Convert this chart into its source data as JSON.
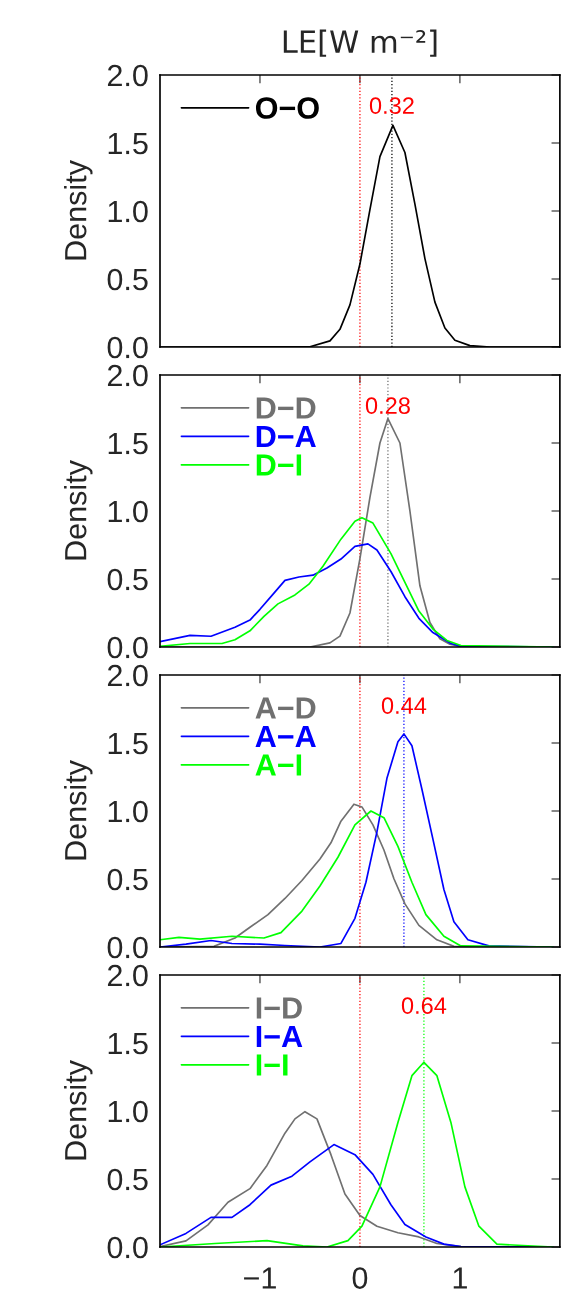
{
  "chart_data": [
    {
      "type": "line",
      "title": "LE[W m⁻²]",
      "ylabel": "Density",
      "xlim": [
        -2,
        2
      ],
      "ylim": [
        0,
        2
      ],
      "xticks": [
        -1,
        0,
        1
      ],
      "yticks": [
        {
          "value": 0,
          "label": "0.0"
        },
        {
          "value": 0.5,
          "label": "0.5"
        },
        {
          "value": 1,
          "label": "1.0"
        },
        {
          "value": 1.5,
          "label": "1.5"
        },
        {
          "value": 2,
          "label": "2.0"
        }
      ],
      "tick_labels": "y",
      "grid": false,
      "legend": "top left",
      "series": [
        {
          "name": "O−O",
          "color": "#000000",
          "x": [
            -2,
            -0.5,
            -0.3,
            -0.2,
            -0.1,
            0,
            0.1,
            0.2,
            0.33,
            0.45,
            0.55,
            0.65,
            0.75,
            0.85,
            0.95,
            1.1,
            1.3,
            2
          ],
          "values": [
            0,
            0.002,
            0.045,
            0.13,
            0.31,
            0.61,
            1.01,
            1.4,
            1.63,
            1.43,
            1.05,
            0.65,
            0.33,
            0.14,
            0.05,
            0.01,
            0,
            0
          ]
        }
      ],
      "ref_lines": [
        {
          "axis": "x",
          "value": 0,
          "color": "#ff0000",
          "line_style": "dotted"
        },
        {
          "axis": "x",
          "value": 0.32,
          "label": "0.32",
          "color": "#000000",
          "line_style": "dotted"
        }
      ]
    },
    {
      "type": "line",
      "ylabel": "Density",
      "xlim": [
        -2,
        2
      ],
      "ylim": [
        0,
        2
      ],
      "xticks": [
        -1,
        0,
        1
      ],
      "yticks": [
        {
          "value": 0,
          "label": "0.0"
        },
        {
          "value": 0.5,
          "label": "0.5"
        },
        {
          "value": 1,
          "label": "1.0"
        },
        {
          "value": 1.5,
          "label": "1.5"
        },
        {
          "value": 2,
          "label": "2.0"
        }
      ],
      "tick_labels": "y",
      "grid": false,
      "legend": "top left",
      "series": [
        {
          "name": "D−D",
          "color": "#707070",
          "x": [
            -2,
            -0.5,
            -0.3,
            -0.2,
            -0.1,
            0,
            0.1,
            0.2,
            0.28,
            0.4,
            0.5,
            0.6,
            0.7,
            0.8,
            0.9,
            1.0,
            1.2,
            2
          ],
          "values": [
            0,
            0,
            0.03,
            0.08,
            0.25,
            0.65,
            1.1,
            1.5,
            1.68,
            1.5,
            1.0,
            0.45,
            0.18,
            0.06,
            0.02,
            0.005,
            0,
            0
          ]
        },
        {
          "name": "D−A",
          "color": "#0000ff",
          "x": [
            -2,
            -1.7,
            -1.49,
            -1.25,
            -1.1,
            -1.0,
            -0.86,
            -0.75,
            -0.61,
            -0.47,
            -0.33,
            -0.19,
            -0.05,
            0.08,
            0.17,
            0.31,
            0.45,
            0.59,
            0.73,
            0.91,
            1.01,
            1.93
          ],
          "values": [
            0.04,
            0.085,
            0.079,
            0.145,
            0.198,
            0.277,
            0.396,
            0.49,
            0.515,
            0.528,
            0.581,
            0.647,
            0.74,
            0.758,
            0.713,
            0.555,
            0.37,
            0.211,
            0.106,
            0.026,
            0.005,
            0
          ]
        },
        {
          "name": "D−I",
          "color": "#00ff00",
          "x": [
            -2,
            -1.7,
            -1.38,
            -1.25,
            -1.1,
            -0.96,
            -0.82,
            -0.65,
            -0.51,
            -0.37,
            -0.19,
            -0.05,
            0.02,
            0.13,
            0.31,
            0.45,
            0.59,
            0.73,
            0.87,
            1.01,
            1.93
          ],
          "values": [
            0.005,
            0.026,
            0.026,
            0.053,
            0.119,
            0.225,
            0.317,
            0.383,
            0.462,
            0.594,
            0.793,
            0.925,
            0.951,
            0.911,
            0.687,
            0.476,
            0.264,
            0.132,
            0.048,
            0.011,
            0
          ]
        }
      ],
      "ref_lines": [
        {
          "axis": "x",
          "value": 0,
          "color": "#ff0000",
          "line_style": "dotted"
        },
        {
          "axis": "x",
          "value": 0.28,
          "label": "0.28",
          "color": "#707070",
          "line_style": "dotted"
        }
      ]
    },
    {
      "type": "line",
      "ylabel": "Density",
      "xlim": [
        -2,
        2
      ],
      "ylim": [
        0,
        2
      ],
      "xticks": [
        -1,
        0,
        1
      ],
      "yticks": [
        {
          "value": 0,
          "label": "0.0"
        },
        {
          "value": 0.5,
          "label": "0.5"
        },
        {
          "value": 1,
          "label": "1.0"
        },
        {
          "value": 1.5,
          "label": "1.5"
        },
        {
          "value": 2,
          "label": "2.0"
        }
      ],
      "tick_labels": "y",
      "grid": false,
      "legend": "top left",
      "series": [
        {
          "name": "A−D",
          "color": "#707070",
          "x": [
            -2,
            -1.46,
            -1.25,
            -1.1,
            -0.92,
            -0.75,
            -0.58,
            -0.4,
            -0.29,
            -0.19,
            -0.06,
            0.02,
            0.13,
            0.24,
            0.34,
            0.45,
            0.59,
            0.77,
            0.94,
            1.93
          ],
          "values": [
            0,
            0.005,
            0.066,
            0.145,
            0.238,
            0.357,
            0.489,
            0.647,
            0.766,
            0.925,
            1.05,
            1.03,
            0.898,
            0.713,
            0.502,
            0.317,
            0.159,
            0.053,
            0.005,
            0
          ]
        },
        {
          "name": "A−A",
          "color": "#0000ff",
          "x": [
            -2,
            -1.74,
            -1.49,
            -1.28,
            -1.0,
            -0.75,
            -0.4,
            -0.19,
            -0.05,
            0.06,
            0.17,
            0.27,
            0.38,
            0.44,
            0.52,
            0.62,
            0.73,
            0.84,
            0.94,
            1.08,
            1.29,
            1.93
          ],
          "values": [
            0,
            0.021,
            0.048,
            0.026,
            0.021,
            0.011,
            0,
            0.026,
            0.211,
            0.476,
            0.846,
            1.24,
            1.51,
            1.567,
            1.48,
            1.16,
            0.793,
            0.423,
            0.185,
            0.053,
            0.008,
            0
          ]
        },
        {
          "name": "A−I",
          "color": "#00ff00",
          "x": [
            -2,
            -1.81,
            -1.6,
            -1.28,
            -0.96,
            -0.79,
            -0.58,
            -0.4,
            -0.22,
            -0.05,
            0.11,
            0.24,
            0.38,
            0.52,
            0.66,
            0.84,
            1.01,
            1.93
          ],
          "values": [
            0.053,
            0.071,
            0.058,
            0.079,
            0.066,
            0.106,
            0.264,
            0.449,
            0.66,
            0.898,
            1.0,
            0.951,
            0.74,
            0.476,
            0.238,
            0.079,
            0.008,
            0
          ]
        }
      ],
      "ref_lines": [
        {
          "axis": "x",
          "value": 0,
          "color": "#ff0000",
          "line_style": "dotted"
        },
        {
          "axis": "x",
          "value": 0.44,
          "label": "0.44",
          "color": "#0000ff",
          "line_style": "dotted"
        }
      ]
    },
    {
      "type": "line",
      "ylabel": "Density",
      "xlim": [
        -2,
        2
      ],
      "ylim": [
        0,
        2
      ],
      "xticks": [
        {
          "value": -1,
          "label": "−1"
        },
        0,
        1
      ],
      "yticks": [
        {
          "value": 0,
          "label": "0.0"
        },
        {
          "value": 0.5,
          "label": "0.5"
        },
        {
          "value": 1,
          "label": "1.0"
        },
        {
          "value": 1.5,
          "label": "1.5"
        },
        {
          "value": 2,
          "label": "2.0"
        }
      ],
      "grid": false,
      "legend": "top left",
      "series": [
        {
          "name": "I−D",
          "color": "#707070",
          "x": [
            -2,
            -1.74,
            -1.52,
            -1.32,
            -1.1,
            -0.93,
            -0.75,
            -0.65,
            -0.55,
            -0.43,
            -0.29,
            -0.15,
            0,
            0.17,
            0.38,
            0.59,
            0.77,
            1.01,
            1.93
          ],
          "values": [
            0.003,
            0.045,
            0.163,
            0.329,
            0.429,
            0.6,
            0.837,
            0.942,
            0.995,
            0.942,
            0.679,
            0.389,
            0.232,
            0.153,
            0.105,
            0.074,
            0.026,
            0.003,
            0
          ]
        },
        {
          "name": "I−A",
          "color": "#0000ff",
          "x": [
            -2,
            -1.74,
            -1.49,
            -1.28,
            -1.1,
            -0.89,
            -0.68,
            -0.5,
            -0.26,
            -0.05,
            0.13,
            0.31,
            0.45,
            0.66,
            0.84,
            1.01,
            1.93
          ],
          "values": [
            0.016,
            0.1,
            0.218,
            0.218,
            0.311,
            0.455,
            0.521,
            0.626,
            0.753,
            0.679,
            0.534,
            0.311,
            0.166,
            0.074,
            0.021,
            0.003,
            0
          ]
        },
        {
          "name": "I−I",
          "color": "#00ff00",
          "x": [
            -2,
            -1.45,
            -0.93,
            -0.57,
            -0.33,
            -0.12,
            0.02,
            0.2,
            0.38,
            0.52,
            0.64,
            0.77,
            0.91,
            1.05,
            1.19,
            1.37,
            1.93
          ],
          "values": [
            0,
            0.026,
            0.047,
            0.008,
            0,
            0.047,
            0.153,
            0.442,
            0.916,
            1.26,
            1.358,
            1.26,
            0.916,
            0.442,
            0.153,
            0.021,
            0
          ]
        }
      ],
      "ref_lines": [
        {
          "axis": "x",
          "value": 0,
          "color": "#ff0000",
          "line_style": "dotted"
        },
        {
          "axis": "x",
          "value": 0.64,
          "label": "0.64",
          "color": "#00ff00",
          "line_style": "dotted"
        }
      ]
    }
  ]
}
